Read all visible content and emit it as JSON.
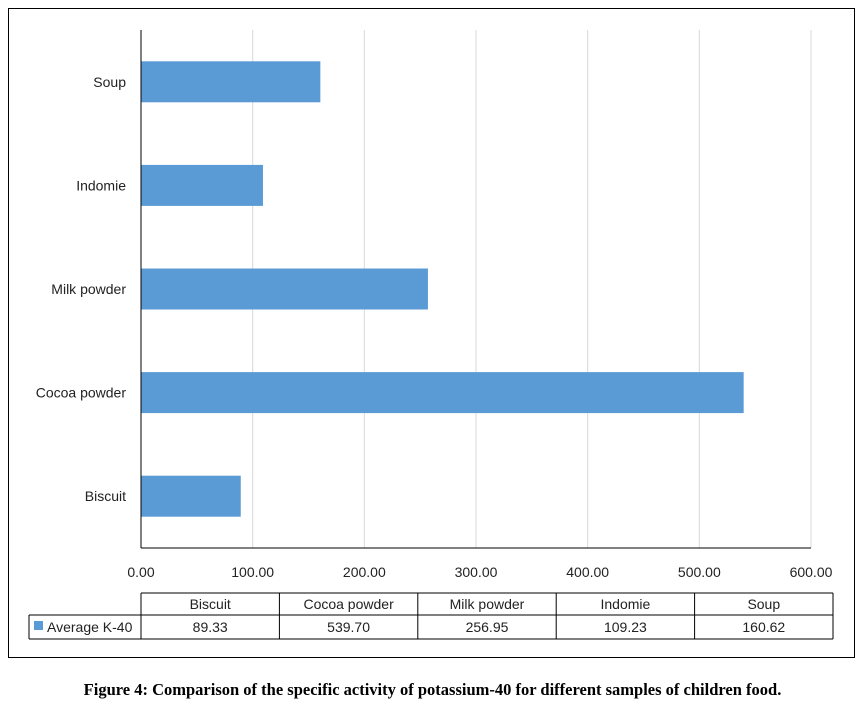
{
  "caption": "Figure 4: Comparison of the specific activity of potassium-40 for different samples of children food.",
  "chart_data": {
    "type": "bar",
    "orientation": "horizontal",
    "categories": [
      "Biscuit",
      "Cocoa powder",
      "Milk powder",
      "Indomie",
      "Soup"
    ],
    "series": [
      {
        "name": "Average K-40",
        "values": [
          89.33,
          539.7,
          256.95,
          109.23,
          160.62
        ],
        "value_labels": [
          "89.33",
          "539.70",
          "256.95",
          "109.23",
          "160.62"
        ],
        "color": "#5b9bd5"
      }
    ],
    "xlim": [
      0,
      600
    ],
    "xticks": [
      "0.00",
      "100.00",
      "200.00",
      "300.00",
      "400.00",
      "500.00",
      "600.00"
    ],
    "grid": true,
    "data_table": true,
    "legend": "in data table"
  }
}
